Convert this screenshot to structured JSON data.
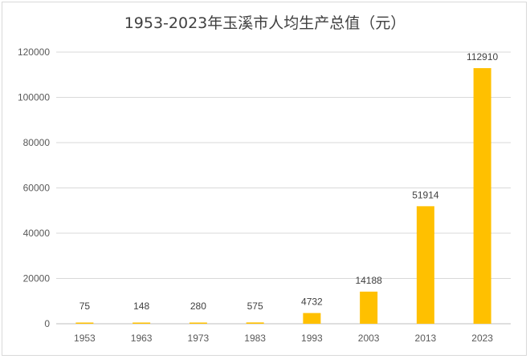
{
  "chart_data": {
    "type": "bar",
    "title": "1953-2023年玉溪市人均生产总值（元）",
    "categories": [
      "1953",
      "1963",
      "1973",
      "1983",
      "1993",
      "2003",
      "2013",
      "2023"
    ],
    "series": [
      {
        "values": [
          75,
          148,
          280,
          575,
          4732,
          14188,
          51914,
          112910
        ]
      }
    ],
    "data_labels": [
      "75",
      "148",
      "280",
      "575",
      "4732",
      "14188",
      "51914",
      "112910"
    ],
    "y_ticks": [
      "0",
      "20000",
      "40000",
      "60000",
      "80000",
      "100000",
      "120000"
    ],
    "ylim": [
      0,
      120000
    ],
    "xlabel": "",
    "ylabel": "",
    "grid": true,
    "legend": "none",
    "bar_color": "#FFC000"
  }
}
